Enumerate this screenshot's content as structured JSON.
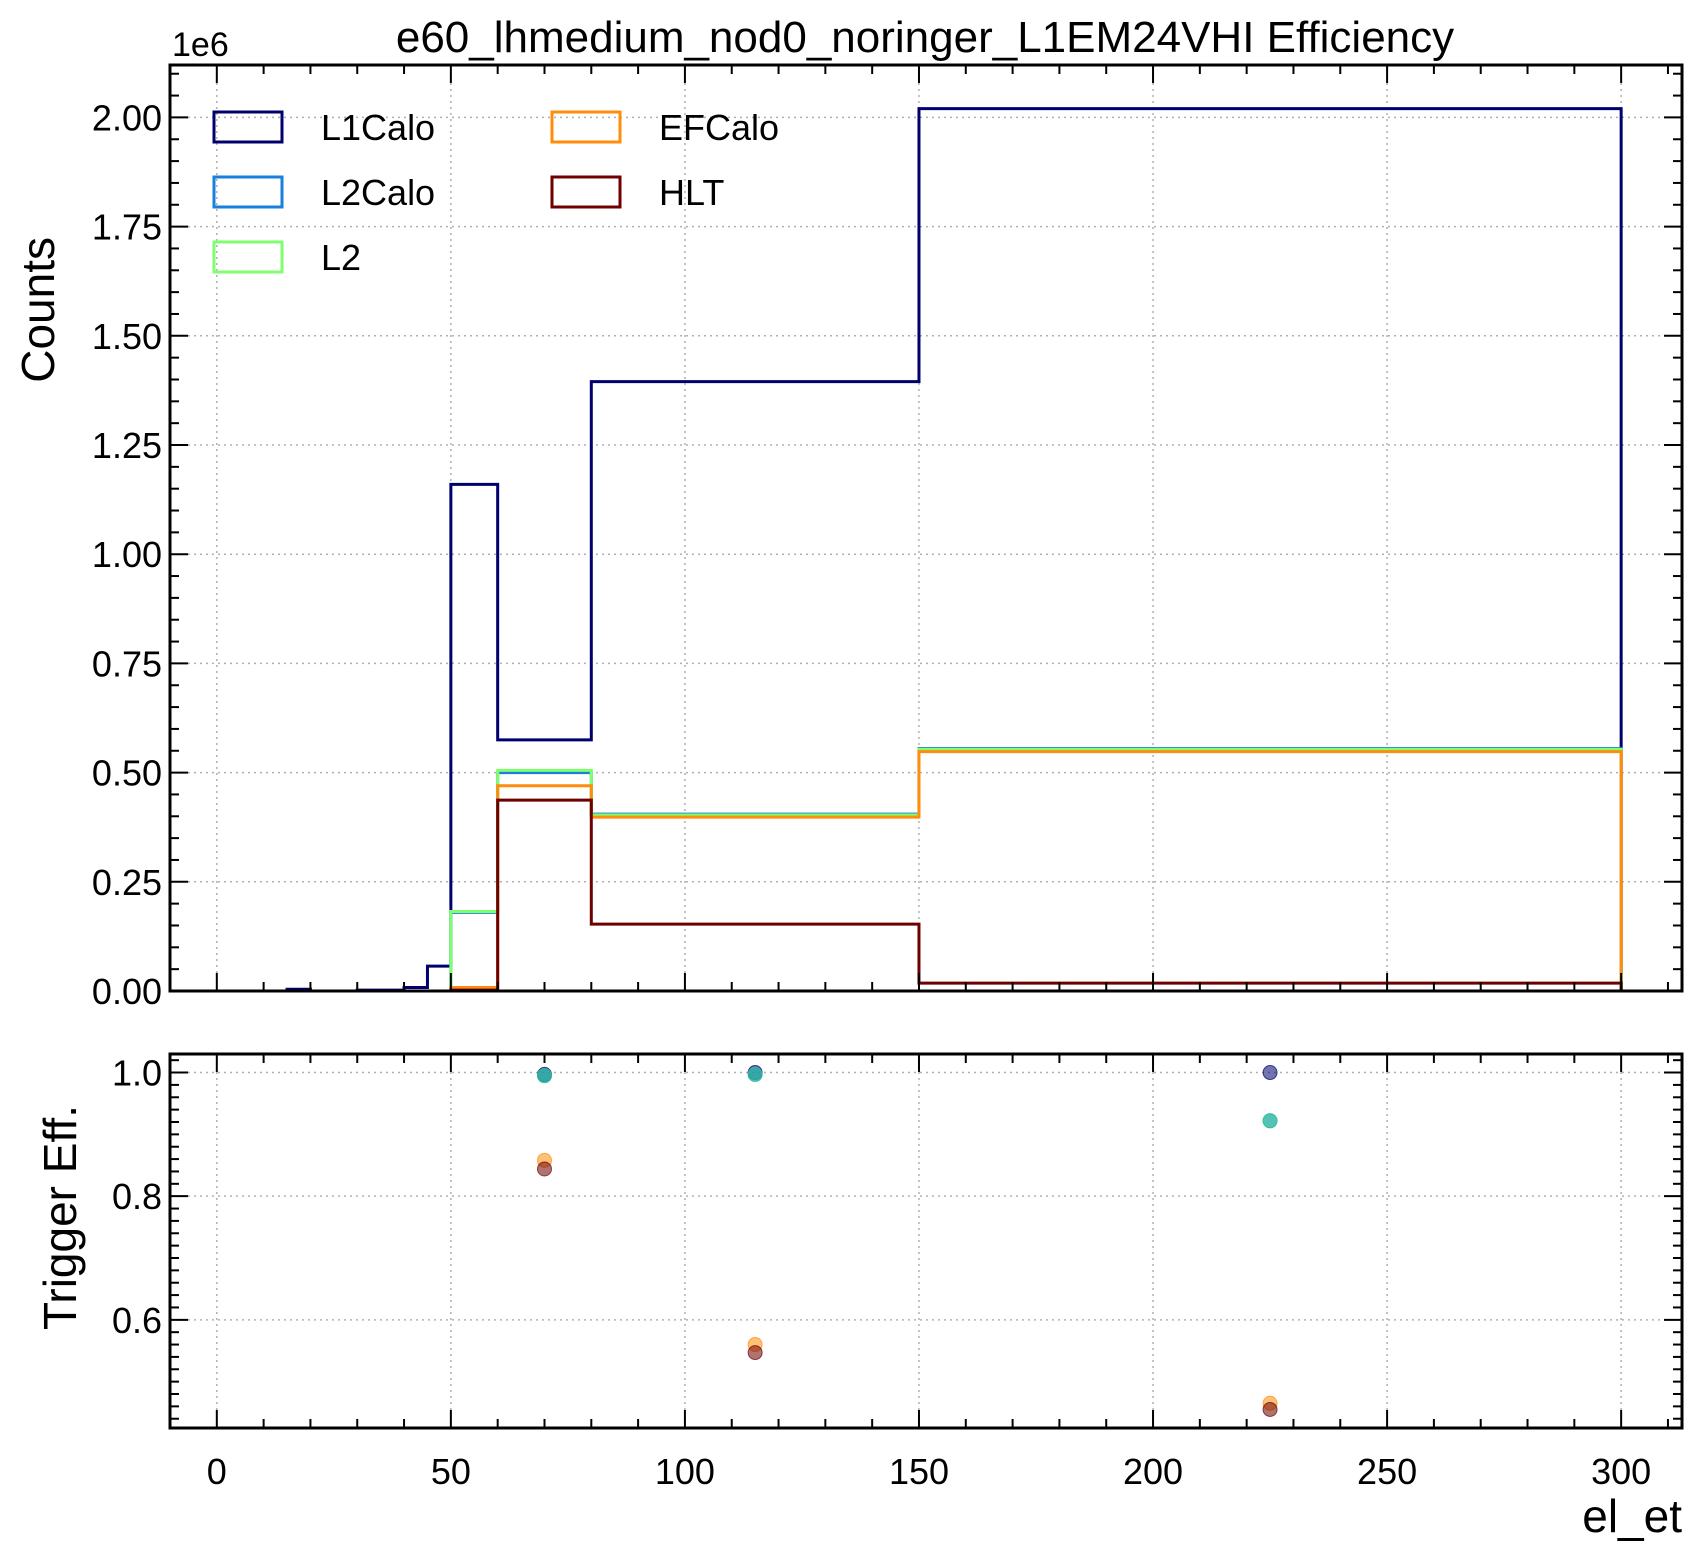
{
  "chart_data": [
    {
      "type": "histogram-step",
      "title": "e60_lhmedium_nod0_noringer_L1EM24VHI Efficiency",
      "xlabel": "",
      "ylabel": "Counts",
      "y_offset_label": "1e6",
      "xlim": [
        -10,
        313
      ],
      "ylim": [
        0,
        2120000
      ],
      "grid": true,
      "legend_position": "upper-left",
      "legend_columns": 2,
      "y_ticks": [
        0,
        250000,
        500000,
        750000,
        1000000,
        1250000,
        1500000,
        1750000,
        2000000
      ],
      "y_tick_labels": [
        "0.00",
        "0.25",
        "0.50",
        "0.75",
        "1.00",
        "1.25",
        "1.50",
        "1.75",
        "2.00"
      ],
      "bin_edges": [
        0,
        5,
        10,
        15,
        20,
        25,
        30,
        35,
        40,
        45,
        50,
        60,
        80,
        150,
        300
      ],
      "series": [
        {
          "name": "L1Calo",
          "color": "#00006e",
          "values": [
            0,
            0,
            0,
            4000,
            0,
            0,
            2000,
            2000,
            8000,
            57000,
            1160000,
            575000,
            1395000,
            2020000
          ]
        },
        {
          "name": "L2Calo",
          "color": "#1a7fdc",
          "values": [
            0,
            0,
            0,
            0,
            0,
            0,
            0,
            0,
            0,
            0,
            180000,
            500000,
            405000,
            555000
          ]
        },
        {
          "name": "L2",
          "color": "#7fff6e",
          "values": [
            0,
            0,
            0,
            0,
            0,
            0,
            0,
            0,
            0,
            0,
            182000,
            505000,
            403000,
            553000
          ]
        },
        {
          "name": "EFCalo",
          "color": "#ff8c0a",
          "values": [
            0,
            0,
            0,
            0,
            0,
            0,
            0,
            0,
            0,
            0,
            8000,
            470000,
            398000,
            548000
          ]
        },
        {
          "name": "HLT",
          "color": "#6e0000",
          "values": [
            0,
            0,
            0,
            0,
            0,
            0,
            0,
            0,
            0,
            0,
            2000,
            437000,
            153000,
            18000
          ]
        }
      ]
    },
    {
      "type": "scatter",
      "title": "",
      "xlabel": "el_et",
      "ylabel": "Trigger Eff.",
      "xlim": [
        -10,
        313
      ],
      "ylim": [
        0.425,
        1.03
      ],
      "grid": true,
      "x_ticks": [
        0,
        50,
        100,
        150,
        200,
        250,
        300
      ],
      "x_tick_labels": [
        "0",
        "50",
        "100",
        "150",
        "200",
        "250",
        "300"
      ],
      "y_ticks": [
        0.6,
        0.8,
        1.0
      ],
      "y_tick_labels": [
        "0.6",
        "0.8",
        "1.0"
      ],
      "series": [
        {
          "color": "#00006e",
          "x": [
            70,
            115,
            225
          ],
          "y": [
            0.997,
            1.0,
            1.0
          ]
        },
        {
          "color": "#1a7fdc",
          "x": [
            70,
            115,
            225
          ],
          "y": [
            0.995,
            0.997,
            0.922
          ]
        },
        {
          "color": "#2ecc8a",
          "x": [
            70,
            115,
            225
          ],
          "y": [
            0.995,
            0.997,
            0.922
          ]
        },
        {
          "color": "#ff8c0a",
          "x": [
            70,
            115,
            225
          ],
          "y": [
            0.858,
            0.56,
            0.465
          ]
        },
        {
          "color": "#6e0000",
          "x": [
            70,
            115,
            225
          ],
          "y": [
            0.844,
            0.547,
            0.455
          ]
        }
      ]
    }
  ]
}
